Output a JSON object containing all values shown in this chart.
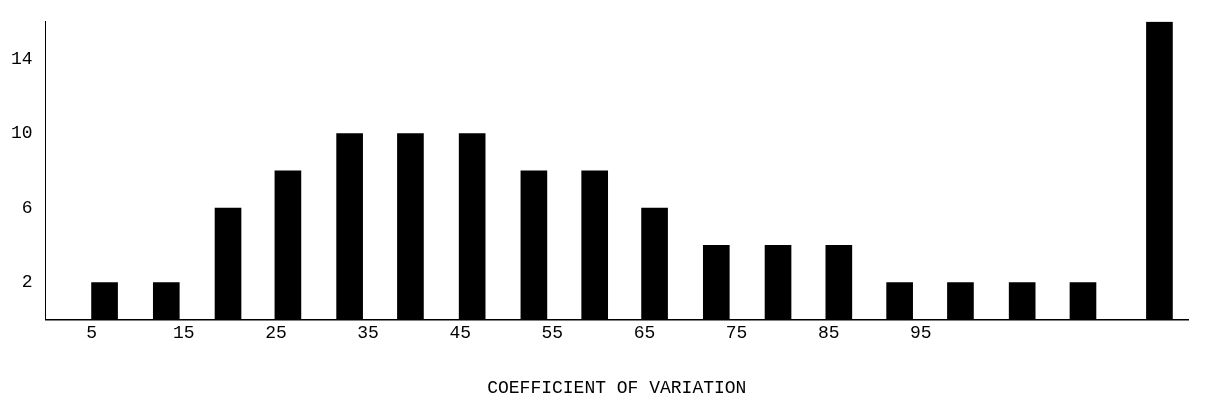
{
  "chart_data": {
    "type": "bar",
    "xlabel": "COEFFICIENT OF VARIATION",
    "x": [
      6.4,
      13.1,
      19.8,
      26.3,
      33,
      39.6,
      46.3,
      53,
      59.6,
      66.1,
      72.8,
      79.5,
      86.1,
      92.7,
      99.3,
      106,
      112.6,
      120.9
    ],
    "values": [
      2,
      2,
      6,
      8,
      10,
      10,
      10,
      8,
      8,
      6,
      4,
      4,
      4,
      2,
      2,
      2,
      2,
      16
    ],
    "color": "#000000",
    "xlim": [
      0,
      124
    ],
    "xticks": [
      5,
      15,
      25,
      35,
      45,
      55,
      65,
      75,
      85,
      95
    ],
    "ylim": [
      0,
      16
    ],
    "yticks": [
      2,
      6,
      10,
      14
    ],
    "grid": false,
    "legend": false
  }
}
